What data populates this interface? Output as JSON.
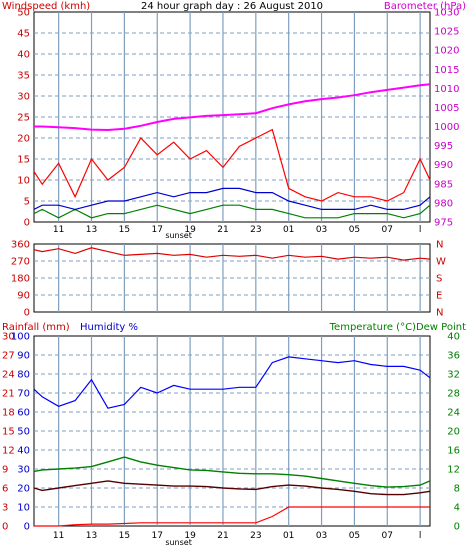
{
  "colors": {
    "wind": "#ff0000",
    "gust": "#d00000",
    "dir": "#dd0000",
    "baro": "#ff00ff",
    "avg": "#0000cc",
    "green": "#008000",
    "humidity": "#0000ff",
    "temperature": "#008000",
    "dewpoint": "#550000",
    "rain": "#ff0000",
    "grid": "#7f9fbf",
    "frame": "#000000",
    "tick_red": "#cc0000",
    "tick_magenta": "#cc00cc",
    "tick_green": "#008000"
  },
  "chart_data": [
    {
      "type": "line",
      "title": "24 hour graph day : 26 August 2010",
      "left_axis_label": "Windspeed (kmh)",
      "right_axis_label": "Barometer (hPa)",
      "x_ticks": [
        "11",
        "13",
        "15",
        "17",
        "19",
        "21",
        "23",
        "01",
        "03",
        "05",
        "07",
        "l"
      ],
      "annotation": "sunset",
      "left_ticks": [
        "0",
        "5",
        "10",
        "15",
        "20",
        "25",
        "30",
        "35",
        "40",
        "45",
        "50"
      ],
      "right_ticks": [
        "975",
        "980",
        "985",
        "990",
        "995",
        "1000",
        "1005",
        "1010",
        "1015",
        "1020",
        "1025",
        "1030"
      ],
      "ylim_left": [
        0,
        50
      ],
      "ylim_right": [
        975,
        1030
      ],
      "hours": [
        9.5,
        10,
        11,
        12,
        13,
        14,
        15,
        16,
        17,
        18,
        19,
        20,
        21,
        22,
        23,
        24,
        25,
        26,
        27,
        28,
        29,
        30,
        31,
        32,
        33,
        33.6
      ],
      "series": [
        {
          "name": "Windspeed (kmh)",
          "values": [
            12,
            9,
            14,
            6,
            15,
            10,
            13,
            20,
            16,
            19,
            15,
            17,
            13,
            18,
            20,
            22,
            8,
            6,
            5,
            7,
            6,
            6,
            5,
            7,
            15,
            10
          ]
        },
        {
          "name": "Barometer (hPa)",
          "values": [
            1000,
            1000,
            999.8,
            999.6,
            999.2,
            999.1,
            999.4,
            1000.2,
            1001.2,
            1002,
            1002.4,
            1002.8,
            1003,
            1003.2,
            1003.5,
            1004.8,
            1005.8,
            1006.6,
            1007.2,
            1007.6,
            1008.2,
            1009,
            1009.6,
            1010.2,
            1010.8,
            1011.1
          ]
        },
        {
          "name": "",
          "values": [
            3,
            4,
            4,
            3,
            4,
            5,
            5,
            6,
            7,
            6,
            7,
            7,
            8,
            8,
            7,
            7,
            5,
            4,
            3,
            3,
            3,
            4,
            3,
            3,
            4,
            6
          ]
        },
        {
          "name": "",
          "values": [
            2,
            3,
            1,
            3,
            1,
            2,
            2,
            3,
            4,
            3,
            2,
            3,
            4,
            4,
            3,
            3,
            2,
            1,
            1,
            1,
            2,
            2,
            2,
            1,
            2,
            4
          ]
        }
      ]
    },
    {
      "type": "line",
      "left_ticks": [
        "360",
        "270",
        "180",
        "90",
        "0"
      ],
      "right_ticks": [
        "N",
        "W",
        "S",
        "E",
        "N"
      ],
      "ylim": [
        0,
        360
      ],
      "hours": [
        9.5,
        10,
        11,
        12,
        13,
        14,
        15,
        16,
        17,
        18,
        19,
        20,
        21,
        22,
        23,
        24,
        25,
        26,
        27,
        28,
        29,
        30,
        31,
        32,
        33,
        33.6
      ],
      "series": [
        {
          "name": "",
          "values": [
            330,
            320,
            335,
            310,
            340,
            320,
            300,
            305,
            310,
            300,
            305,
            290,
            300,
            295,
            300,
            285,
            300,
            290,
            295,
            280,
            290,
            285,
            290,
            275,
            285,
            280
          ]
        }
      ]
    },
    {
      "type": "line",
      "left_axis_label_1": "Rainfall (mm)",
      "left_axis_label_2": "Humidity %",
      "right_axis_label": "Temperature (°C)Dew Point",
      "x_ticks": [
        "11",
        "13",
        "15",
        "17",
        "19",
        "21",
        "23",
        "01",
        "03",
        "05",
        "07",
        "l"
      ],
      "annotation": "sunset",
      "rain_ticks": [
        "0",
        "3",
        "6",
        "9",
        "12",
        "15",
        "18",
        "21",
        "24",
        "27",
        "30"
      ],
      "humidity_ticks": [
        "0",
        "10",
        "20",
        "30",
        "40",
        "50",
        "60",
        "70",
        "80",
        "90",
        "100"
      ],
      "temp_ticks": [
        "0",
        "4",
        "8",
        "12",
        "16",
        "20",
        "24",
        "28",
        "32",
        "36",
        "40"
      ],
      "ylim_humidity": [
        0,
        100
      ],
      "ylim_temp": [
        0,
        40
      ],
      "ylim_rain": [
        0,
        30
      ],
      "hours": [
        9.5,
        10,
        11,
        12,
        13,
        14,
        15,
        16,
        17,
        18,
        19,
        20,
        21,
        22,
        23,
        24,
        25,
        26,
        27,
        28,
        29,
        30,
        31,
        32,
        33,
        33.6
      ],
      "series": [
        {
          "name": "Humidity %",
          "values": [
            72,
            68,
            63,
            66,
            77,
            62,
            64,
            73,
            70,
            74,
            72,
            72,
            72,
            73,
            73,
            86,
            89,
            88,
            87,
            86,
            87,
            85,
            84,
            84,
            82,
            78
          ]
        },
        {
          "name": "Temperature (°C)",
          "values": [
            11.5,
            11.8,
            12,
            12.2,
            12.5,
            13.5,
            14.5,
            13.5,
            12.8,
            12.3,
            11.8,
            11.7,
            11.4,
            11.1,
            11,
            11,
            10.8,
            10.5,
            10,
            9.5,
            9,
            8.5,
            8.2,
            8.3,
            8.6,
            9.5
          ]
        },
        {
          "name": "Dew Point",
          "values": [
            8,
            7.5,
            8,
            8.5,
            9,
            9.5,
            9,
            8.8,
            8.6,
            8.4,
            8.4,
            8.3,
            8,
            7.8,
            7.7,
            8.3,
            8.6,
            8.4,
            8,
            7.7,
            7.3,
            6.8,
            6.6,
            6.6,
            7,
            7.3
          ]
        },
        {
          "name": "Rainfall (mm)",
          "values": [
            0,
            0,
            0,
            0.2,
            0.3,
            0.3,
            0.4,
            0.5,
            0.5,
            0.5,
            0.5,
            0.5,
            0.5,
            0.5,
            0.5,
            1.5,
            3,
            3,
            3,
            3,
            3,
            3,
            3,
            3,
            3,
            3
          ]
        }
      ]
    }
  ]
}
